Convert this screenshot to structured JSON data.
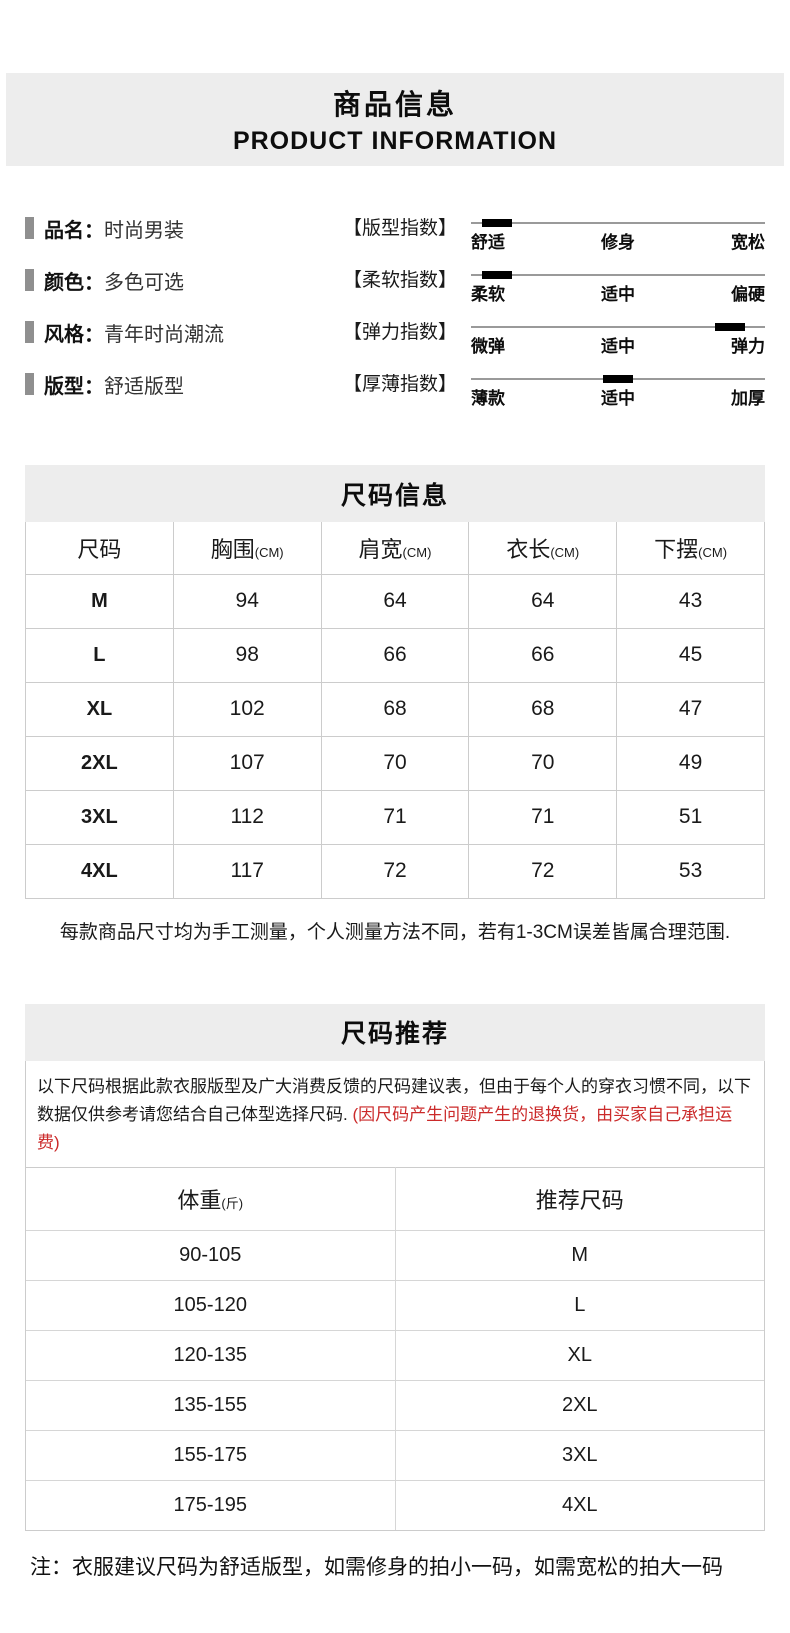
{
  "header": {
    "title_cn": "商品信息",
    "title_en": "PRODUCT INFORMATION"
  },
  "attributes": [
    {
      "label": "品名：",
      "value": "时尚男装"
    },
    {
      "label": "颜色：",
      "value": "多色可选"
    },
    {
      "label": "风格：",
      "value": "青年时尚潮流"
    },
    {
      "label": "版型：",
      "value": "舒适版型"
    }
  ],
  "indices": [
    {
      "name": "【版型指数】",
      "left": "舒适",
      "center": "修身",
      "right": "宽松",
      "marker_percent": 9
    },
    {
      "name": "【柔软指数】",
      "left": "柔软",
      "center": "适中",
      "right": "偏硬",
      "marker_percent": 9
    },
    {
      "name": "【弹力指数】",
      "left": "微弹",
      "center": "适中",
      "right": "弹力",
      "marker_percent": 88
    },
    {
      "name": "【厚薄指数】",
      "left": "薄款",
      "center": "适中",
      "right": "加厚",
      "marker_percent": 50
    }
  ],
  "size_table": {
    "title": "尺码信息",
    "headers": [
      {
        "main": "尺码",
        "unit": ""
      },
      {
        "main": "胸围",
        "unit": "(CM)"
      },
      {
        "main": "肩宽",
        "unit": "(CM)"
      },
      {
        "main": "衣长",
        "unit": "(CM)"
      },
      {
        "main": "下摆",
        "unit": "(CM)"
      }
    ],
    "rows": [
      [
        "M",
        "94",
        "64",
        "64",
        "43"
      ],
      [
        "L",
        "98",
        "66",
        "66",
        "45"
      ],
      [
        "XL",
        "102",
        "68",
        "68",
        "47"
      ],
      [
        "2XL",
        "107",
        "70",
        "70",
        "49"
      ],
      [
        "3XL",
        "112",
        "71",
        "71",
        "51"
      ],
      [
        "4XL",
        "117",
        "72",
        "72",
        "53"
      ]
    ],
    "note": "每款商品尺寸均为手工测量，个人测量方法不同，若有1-3CM误差皆属合理范围."
  },
  "recommend": {
    "title": "尺码推荐",
    "intro_black": "以下尺码根据此款衣服版型及广大消费反馈的尺码建议表，但由于每个人的穿衣习惯不同，以下数据仅供参考请您结合自己体型选择尺码.",
    "intro_red": "(因尺码产生问题产生的退换货，由买家自己承担运费)",
    "headers": [
      {
        "main": "体重",
        "unit": "(斤)"
      },
      {
        "main": "推荐尺码",
        "unit": ""
      }
    ],
    "rows": [
      [
        "90-105",
        "M"
      ],
      [
        "105-120",
        "L"
      ],
      [
        "120-135",
        "XL"
      ],
      [
        "135-155",
        "2XL"
      ],
      [
        "155-175",
        "3XL"
      ],
      [
        "175-195",
        "4XL"
      ]
    ],
    "footnote": "注：衣服建议尺码为舒适版型，如需修身的拍小一码，如需宽松的拍大一码"
  },
  "colors": {
    "band_gray": "#ededed",
    "border_gray": "#cccccc",
    "note_red": "#cb2a2a",
    "marker_black": "#000000"
  }
}
